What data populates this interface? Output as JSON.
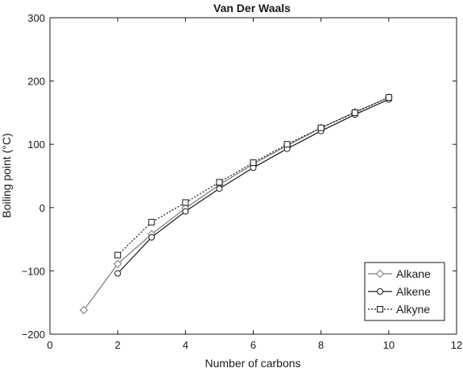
{
  "chart_data": {
    "type": "line",
    "title": "Van Der Waals",
    "xlabel": "Number of carbons",
    "ylabel": "Boiling point (°C)",
    "xlim": [
      0,
      12
    ],
    "ylim": [
      -200,
      300
    ],
    "xticks": [
      0,
      2,
      4,
      6,
      8,
      10,
      12
    ],
    "yticks": [
      -200,
      -100,
      0,
      100,
      200,
      300
    ],
    "xtick_labels": [
      "0",
      "2",
      "4",
      "6",
      "8",
      "10",
      "12"
    ],
    "ytick_labels": [
      "−200",
      "−100",
      "0",
      "100",
      "200",
      "300"
    ],
    "grid": false,
    "legend_position": "bottom-right",
    "series": [
      {
        "name": "Alkane",
        "marker": "diamond",
        "line": "solid",
        "color": "#7a7a7a",
        "x": [
          1,
          2,
          3,
          4,
          5,
          6,
          7,
          8,
          9,
          10
        ],
        "y": [
          -162,
          -89,
          -42,
          -1,
          36,
          69,
          98,
          126,
          151,
          174
        ]
      },
      {
        "name": "Alkene",
        "marker": "circle",
        "line": "solid",
        "color": "#1a1a1a",
        "x": [
          2,
          3,
          4,
          5,
          6,
          7,
          8,
          9,
          10
        ],
        "y": [
          -104,
          -47,
          -6,
          30,
          63,
          93,
          121,
          147,
          171
        ]
      },
      {
        "name": "Alkyne",
        "marker": "square",
        "line": "dotted",
        "color": "#1a1a1a",
        "x": [
          2,
          3,
          4,
          5,
          6,
          7,
          8,
          9,
          10
        ],
        "y": [
          -75,
          -23,
          8,
          40,
          71,
          100,
          126,
          150,
          174
        ]
      }
    ]
  }
}
